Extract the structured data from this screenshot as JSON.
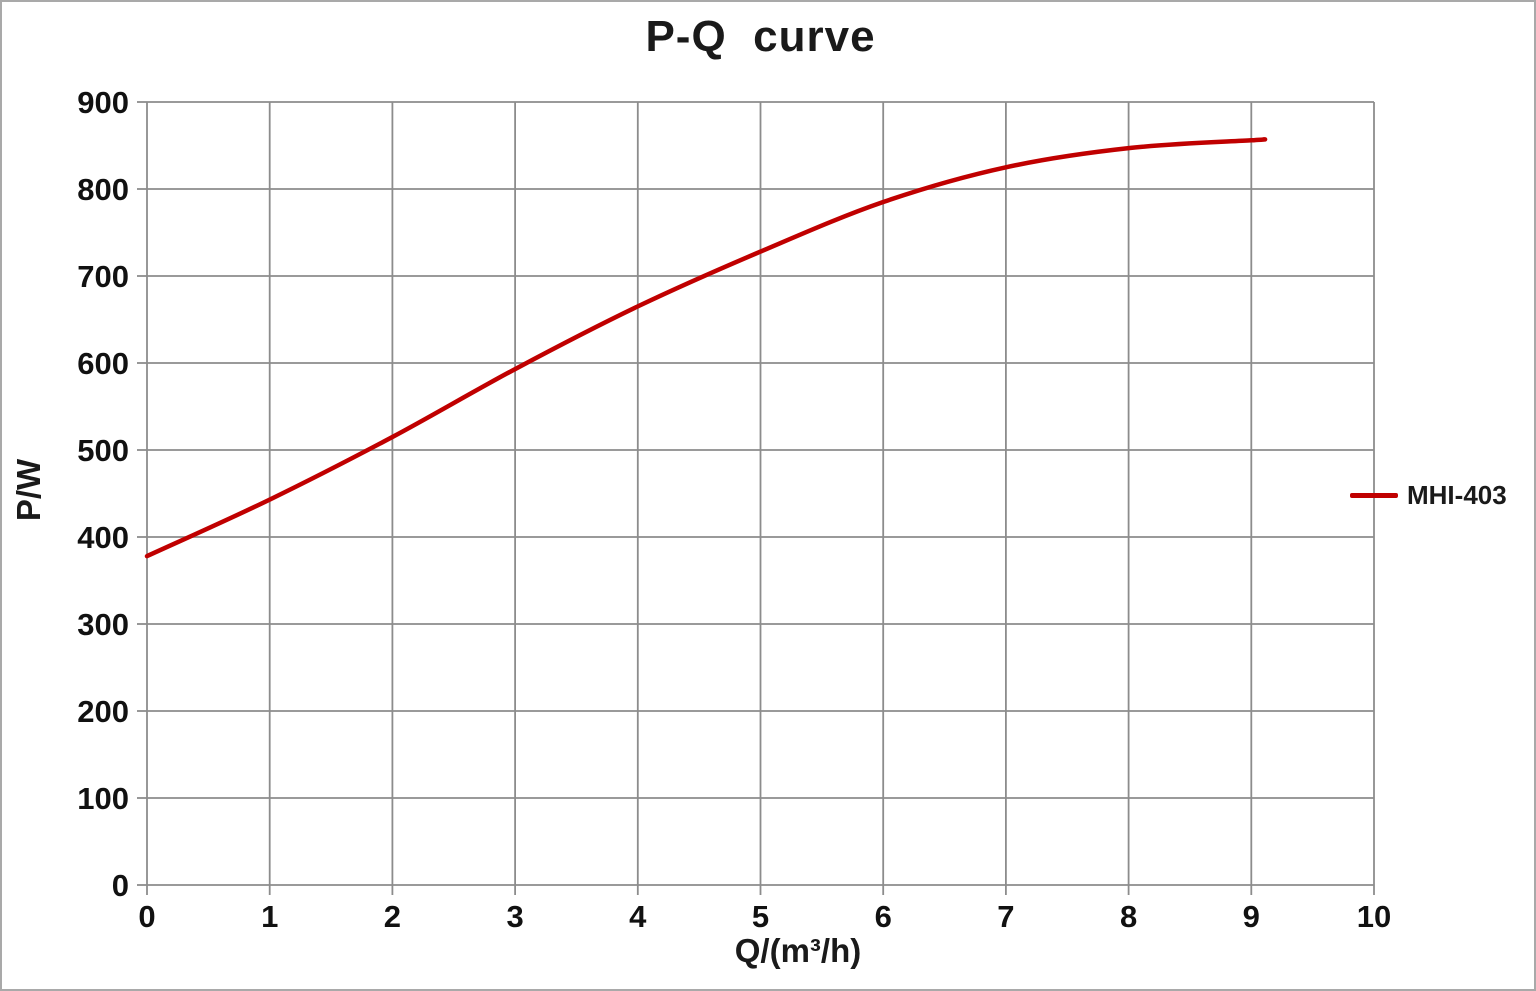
{
  "window": {
    "background_color": "#ffffff",
    "border_color": "#a9a9a9"
  },
  "chart_data": {
    "type": "line",
    "title": "P-Q  curve",
    "xlabel": "Q/(m³/h)",
    "ylabel": "P/W",
    "xlim": [
      0,
      10
    ],
    "ylim": [
      0,
      900
    ],
    "x_ticks": [
      "0",
      "1",
      "2",
      "3",
      "4",
      "5",
      "6",
      "7",
      "8",
      "9",
      "10"
    ],
    "x_tick_values": [
      0,
      1,
      2,
      3,
      4,
      5,
      6,
      7,
      8,
      9,
      10
    ],
    "y_ticks": [
      "0",
      "100",
      "200",
      "300",
      "400",
      "500",
      "600",
      "700",
      "800",
      "900"
    ],
    "y_tick_values": [
      0,
      100,
      200,
      300,
      400,
      500,
      600,
      700,
      800,
      900
    ],
    "grid": "both",
    "gridline_color": "#8c8c8c",
    "legend_position": "right",
    "series": [
      {
        "name": "MHI-403",
        "color": "#c00000",
        "x": [
          0,
          1,
          2,
          3,
          4,
          5,
          6,
          7,
          8,
          9,
          9.1
        ],
        "y": [
          378,
          443,
          515,
          593,
          665,
          728,
          785,
          825,
          847,
          856,
          857
        ]
      }
    ]
  }
}
